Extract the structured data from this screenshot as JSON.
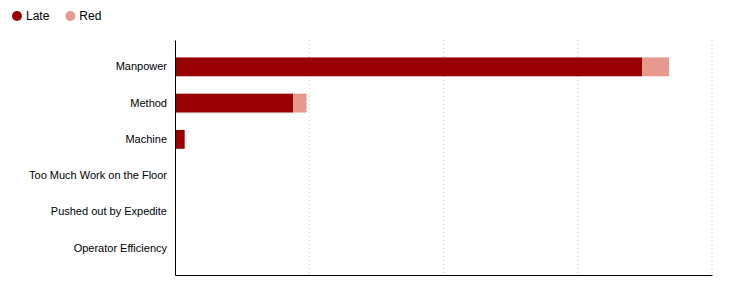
{
  "chart_data": {
    "type": "bar",
    "orientation": "horizontal",
    "stacked": true,
    "categories": [
      "Operator Efficiency",
      "Pushed out by Expedite",
      "Too Much Work on the Floor",
      "Machine",
      "Method",
      "Manpower"
    ],
    "series": [
      {
        "name": "Late",
        "color": "#990000",
        "values": [
          0.15,
          0.15,
          0.15,
          1.8,
          22.0,
          87.0
        ]
      },
      {
        "name": "Red",
        "color": "#E8998D",
        "values": [
          0.0,
          0.0,
          0.0,
          0.0,
          2.5,
          5.0
        ]
      }
    ],
    "xlim": [
      0,
      100
    ],
    "xticks": [
      25,
      50,
      75,
      100
    ],
    "grid": true,
    "legend": "top-left",
    "tick_labels": "y"
  }
}
